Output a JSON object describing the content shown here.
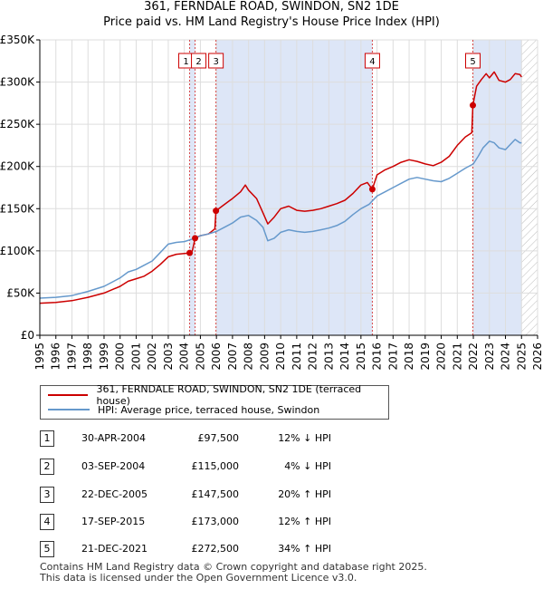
{
  "title_line1": "361, FERNDALE ROAD, SWINDON, SN2 1DE",
  "title_line2": "Price paid vs. HM Land Registry's House Price Index (HPI)",
  "chart_data": {
    "type": "line",
    "xlim": [
      1995,
      2026
    ],
    "ylim": [
      0,
      350000
    ],
    "y_ticks": [
      0,
      50000,
      100000,
      150000,
      200000,
      250000,
      300000,
      350000
    ],
    "y_tick_labels": [
      "£0",
      "£50K",
      "£100K",
      "£150K",
      "£200K",
      "£250K",
      "£300K",
      "£350K"
    ],
    "x_ticks": [
      1995,
      1996,
      1997,
      1998,
      1999,
      2000,
      2001,
      2002,
      2003,
      2004,
      2005,
      2006,
      2007,
      2008,
      2009,
      2010,
      2011,
      2012,
      2013,
      2014,
      2015,
      2016,
      2017,
      2018,
      2019,
      2020,
      2021,
      2022,
      2023,
      2024,
      2025,
      2026
    ],
    "grid": true,
    "hatched_after": 2025.0,
    "shaded_regions": [
      [
        2004.33,
        2004.67
      ],
      [
        2005.97,
        2015.71
      ],
      [
        2021.97,
        2025.0
      ]
    ],
    "series": [
      {
        "name": "361, FERNDALE ROAD, SWINDON, SN2 1DE (terraced house)",
        "color": "#cc0000",
        "x": [
          1995.0,
          1996.0,
          1997.0,
          1998.0,
          1999.0,
          2000.0,
          2000.5,
          2001.0,
          2001.5,
          2002.0,
          2002.5,
          2003.0,
          2003.5,
          2004.0,
          2004.33,
          2004.5,
          2004.67,
          2005.0,
          2005.5,
          2005.9,
          2005.97,
          2006.5,
          2007.0,
          2007.5,
          2007.8,
          2008.0,
          2008.5,
          2008.9,
          2009.2,
          2009.6,
          2010.0,
          2010.5,
          2011.0,
          2011.5,
          2012.0,
          2012.5,
          2013.0,
          2013.5,
          2014.0,
          2014.5,
          2015.0,
          2015.4,
          2015.71,
          2016.0,
          2016.5,
          2017.0,
          2017.5,
          2018.0,
          2018.5,
          2019.0,
          2019.5,
          2020.0,
          2020.5,
          2021.0,
          2021.5,
          2021.9,
          2021.97,
          2022.2,
          2022.5,
          2022.8,
          2023.0,
          2023.3,
          2023.6,
          2024.0,
          2024.3,
          2024.6,
          2024.9,
          2025.0
        ],
        "values": [
          38000,
          39000,
          41000,
          45000,
          50000,
          58000,
          64000,
          67000,
          70000,
          76000,
          84000,
          93000,
          96000,
          97000,
          97500,
          100000,
          115000,
          118000,
          120000,
          126000,
          147500,
          155000,
          162000,
          170000,
          178000,
          172000,
          162000,
          145000,
          132000,
          140000,
          150000,
          153000,
          148000,
          147000,
          148000,
          150000,
          153000,
          156000,
          160000,
          168000,
          178000,
          181000,
          173000,
          190000,
          196000,
          200000,
          205000,
          208000,
          206000,
          203000,
          201000,
          205000,
          212000,
          225000,
          235000,
          240000,
          272500,
          295000,
          303000,
          310000,
          305000,
          312000,
          302000,
          300000,
          303000,
          310000,
          309000,
          306000
        ]
      },
      {
        "name": "HPI: Average price, terraced house, Swindon",
        "color": "#6699cc",
        "x": [
          1995.0,
          1996.0,
          1997.0,
          1998.0,
          1999.0,
          2000.0,
          2000.5,
          2001.0,
          2001.5,
          2002.0,
          2002.5,
          2003.0,
          2003.5,
          2004.0,
          2004.5,
          2005.0,
          2005.5,
          2006.0,
          2006.5,
          2007.0,
          2007.5,
          2008.0,
          2008.5,
          2008.9,
          2009.2,
          2009.6,
          2010.0,
          2010.5,
          2011.0,
          2011.5,
          2012.0,
          2012.5,
          2013.0,
          2013.5,
          2014.0,
          2014.5,
          2015.0,
          2015.5,
          2016.0,
          2016.5,
          2017.0,
          2017.5,
          2018.0,
          2018.5,
          2019.0,
          2019.5,
          2020.0,
          2020.5,
          2021.0,
          2021.5,
          2022.0,
          2022.3,
          2022.6,
          2023.0,
          2023.3,
          2023.6,
          2024.0,
          2024.3,
          2024.6,
          2024.9,
          2025.0
        ],
        "values": [
          44000,
          45000,
          47000,
          52000,
          58000,
          68000,
          75000,
          78000,
          83000,
          88000,
          98000,
          108000,
          110000,
          111000,
          114000,
          118000,
          120000,
          123000,
          128000,
          133000,
          140000,
          142000,
          136000,
          128000,
          112000,
          115000,
          122000,
          125000,
          123000,
          122000,
          123000,
          125000,
          127000,
          130000,
          135000,
          143000,
          150000,
          155000,
          165000,
          170000,
          175000,
          180000,
          185000,
          187000,
          185000,
          183000,
          182000,
          186000,
          192000,
          198000,
          203000,
          212000,
          222000,
          230000,
          228000,
          222000,
          220000,
          226000,
          232000,
          228000,
          228000
        ]
      }
    ],
    "sales": [
      {
        "label": "1",
        "x": 2004.33,
        "value": 97500,
        "show_dot": true
      },
      {
        "label": "2",
        "x": 2004.67,
        "value": 115000,
        "show_dot": true
      },
      {
        "label": "3",
        "x": 2005.97,
        "value": 147500,
        "show_dot": true
      },
      {
        "label": "4",
        "x": 2015.71,
        "value": 173000,
        "show_dot": true
      },
      {
        "label": "5",
        "x": 2021.97,
        "value": 272500,
        "show_dot": true
      }
    ]
  },
  "legend": {
    "property": "361, FERNDALE ROAD, SWINDON, SN2 1DE (terraced house)",
    "hpi": "HPI: Average price, terraced house, Swindon"
  },
  "transactions": [
    {
      "num": "1",
      "date": "30-APR-2004",
      "price": "£97,500",
      "pct": "12% ↓ HPI"
    },
    {
      "num": "2",
      "date": "03-SEP-2004",
      "price": "£115,000",
      "pct": "4% ↓ HPI"
    },
    {
      "num": "3",
      "date": "22-DEC-2005",
      "price": "£147,500",
      "pct": "20% ↑ HPI"
    },
    {
      "num": "4",
      "date": "17-SEP-2015",
      "price": "£173,000",
      "pct": "12% ↑ HPI"
    },
    {
      "num": "5",
      "date": "21-DEC-2021",
      "price": "£272,500",
      "pct": "34% ↑ HPI"
    }
  ],
  "footer_line1": "Contains HM Land Registry data © Crown copyright and database right 2025.",
  "footer_line2": "This data is licensed under the Open Government Licence v3.0.",
  "colors": {
    "property": "#cc0000",
    "hpi": "#6699cc",
    "shade": "#dde6f7",
    "grid": "#dddddd"
  }
}
